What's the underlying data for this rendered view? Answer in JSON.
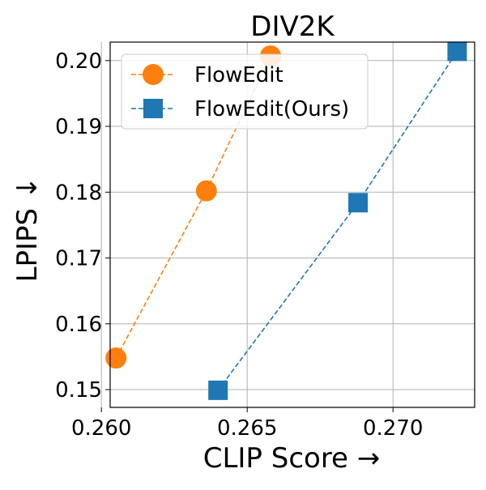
{
  "chart_data": {
    "type": "line",
    "title": "DIV2K",
    "xlabel": "CLIP Score →",
    "ylabel": "LPIPS ↓",
    "xlim": [
      0.2603,
      0.2728
    ],
    "ylim": [
      0.1473,
      0.2028
    ],
    "xticks": [
      0.26,
      0.265,
      0.27
    ],
    "xtick_labels": [
      "0.260",
      "0.265",
      "0.270"
    ],
    "yticks": [
      0.15,
      0.16,
      0.17,
      0.18,
      0.19,
      0.2
    ],
    "ytick_labels": [
      "0.15",
      "0.16",
      "0.17",
      "0.18",
      "0.19",
      "0.20"
    ],
    "grid": true,
    "legend_position": "upper-left",
    "series": [
      {
        "name": "FlowEdit",
        "color": "#ff7f0e",
        "marker": "circle",
        "linestyle": "dashed",
        "x": [
          0.2605,
          0.2636,
          0.2658
        ],
        "y": [
          0.1548,
          0.1802,
          0.2007
        ]
      },
      {
        "name": "FlowEdit(Ours)",
        "color": "#1f77b4",
        "marker": "square",
        "linestyle": "dashed",
        "x": [
          0.264,
          0.2688,
          0.2722
        ],
        "y": [
          0.1499,
          0.1784,
          0.2014
        ]
      }
    ]
  }
}
